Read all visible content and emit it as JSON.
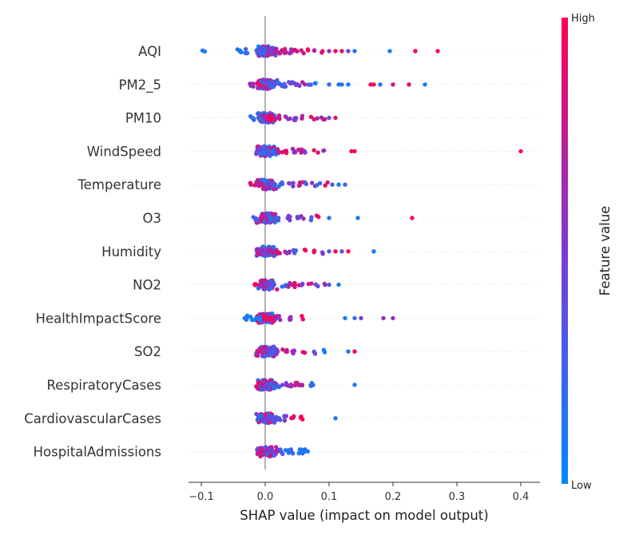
{
  "chart_data": {
    "type": "scatter",
    "xlabel": "SHAP value (impact on model output)",
    "xlim": [
      -0.12,
      0.43
    ],
    "xticks": [
      -0.1,
      0.0,
      0.1,
      0.2,
      0.3,
      0.4
    ],
    "xtick_labels": [
      "−0.1",
      "0.0",
      "0.1",
      "0.2",
      "0.3",
      "0.4"
    ],
    "colorbar": {
      "label": "Feature value",
      "high_label": "High",
      "low_label": "Low",
      "low_color": "#008afb",
      "mid_color": "#7c3bd5",
      "high_color": "#ff0052"
    },
    "features": [
      {
        "name": "AQI",
        "points": [
          [
            -0.095,
            0.1
          ],
          [
            -0.04,
            0.1
          ],
          [
            -0.03,
            0.2
          ],
          [
            -0.01,
            0.3
          ],
          [
            0.005,
            0.5
          ],
          [
            0.01,
            0.6
          ],
          [
            0.015,
            0.5
          ],
          [
            0.02,
            0.7
          ],
          [
            0.03,
            0.8
          ],
          [
            0.04,
            0.6
          ],
          [
            0.05,
            0.9
          ],
          [
            0.06,
            0.8
          ],
          [
            0.07,
            0.95
          ],
          [
            0.08,
            0.7
          ],
          [
            0.09,
            0.9
          ],
          [
            0.1,
            0.6
          ],
          [
            0.11,
            0.95
          ],
          [
            0.12,
            0.9
          ],
          [
            0.13,
            0.4
          ],
          [
            0.14,
            0.2
          ],
          [
            0.195,
            0.1
          ],
          [
            0.235,
            1.0
          ],
          [
            0.27,
            1.0
          ]
        ]
      },
      {
        "name": "PM2_5",
        "points": [
          [
            -0.02,
            0.6
          ],
          [
            -0.01,
            0.9
          ],
          [
            0.005,
            0.4
          ],
          [
            0.01,
            0.3
          ],
          [
            0.02,
            0.2
          ],
          [
            0.03,
            0.3
          ],
          [
            0.04,
            0.4
          ],
          [
            0.05,
            0.5
          ],
          [
            0.06,
            0.7
          ],
          [
            0.07,
            0.3
          ],
          [
            0.08,
            0.1
          ],
          [
            0.1,
            0.2
          ],
          [
            0.115,
            0.1
          ],
          [
            0.12,
            0.2
          ],
          [
            0.13,
            0.1
          ],
          [
            0.165,
            0.9
          ],
          [
            0.17,
            1.0
          ],
          [
            0.18,
            0.1
          ],
          [
            0.2,
            0.8
          ],
          [
            0.225,
            0.95
          ],
          [
            0.25,
            0.1
          ]
        ]
      },
      {
        "name": "PM10",
        "points": [
          [
            -0.02,
            0.2
          ],
          [
            -0.01,
            0.3
          ],
          [
            0.0,
            0.7
          ],
          [
            0.005,
            0.9
          ],
          [
            0.01,
            0.95
          ],
          [
            0.02,
            0.8
          ],
          [
            0.035,
            0.6
          ],
          [
            0.045,
            0.5
          ],
          [
            0.06,
            0.7
          ],
          [
            0.075,
            0.9
          ],
          [
            0.085,
            0.6
          ],
          [
            0.095,
            0.8
          ],
          [
            0.1,
            0.4
          ],
          [
            0.11,
            0.85
          ]
        ]
      },
      {
        "name": "WindSpeed",
        "points": [
          [
            -0.01,
            0.5
          ],
          [
            0.0,
            0.3
          ],
          [
            0.01,
            0.2
          ],
          [
            0.02,
            0.7
          ],
          [
            0.03,
            0.9
          ],
          [
            0.045,
            0.6
          ],
          [
            0.055,
            0.8
          ],
          [
            0.065,
            0.5
          ],
          [
            0.08,
            0.9
          ],
          [
            0.09,
            0.6
          ],
          [
            0.135,
            0.95
          ],
          [
            0.14,
            1.0
          ],
          [
            0.4,
            1.0
          ]
        ]
      },
      {
        "name": "Temperature",
        "points": [
          [
            -0.02,
            0.9
          ],
          [
            -0.01,
            0.7
          ],
          [
            0.005,
            0.5
          ],
          [
            0.015,
            0.3
          ],
          [
            0.025,
            0.2
          ],
          [
            0.04,
            0.5
          ],
          [
            0.055,
            0.8
          ],
          [
            0.065,
            0.3
          ],
          [
            0.075,
            0.6
          ],
          [
            0.085,
            0.2
          ],
          [
            0.095,
            0.9
          ],
          [
            0.105,
            0.3
          ],
          [
            0.115,
            0.1
          ],
          [
            0.125,
            0.2
          ]
        ]
      },
      {
        "name": "O3",
        "points": [
          [
            -0.015,
            0.3
          ],
          [
            -0.005,
            0.8
          ],
          [
            0.01,
            0.2
          ],
          [
            0.02,
            0.3
          ],
          [
            0.035,
            0.5
          ],
          [
            0.05,
            0.4
          ],
          [
            0.06,
            0.6
          ],
          [
            0.07,
            0.3
          ],
          [
            0.08,
            0.9
          ],
          [
            0.1,
            0.1
          ],
          [
            0.145,
            0.1
          ],
          [
            0.23,
            1.0
          ]
        ]
      },
      {
        "name": "Humidity",
        "points": [
          [
            -0.01,
            0.6
          ],
          [
            0.0,
            0.5
          ],
          [
            0.01,
            0.7
          ],
          [
            0.02,
            0.9
          ],
          [
            0.035,
            0.6
          ],
          [
            0.045,
            0.3
          ],
          [
            0.06,
            0.95
          ],
          [
            0.08,
            0.9
          ],
          [
            0.09,
            0.5
          ],
          [
            0.1,
            0.3
          ],
          [
            0.11,
            0.95
          ],
          [
            0.12,
            0.4
          ],
          [
            0.13,
            0.95
          ],
          [
            0.17,
            0.1
          ]
        ]
      },
      {
        "name": "NO2",
        "points": [
          [
            -0.015,
            0.95
          ],
          [
            -0.005,
            0.7
          ],
          [
            0.005,
            0.5
          ],
          [
            0.015,
            0.3
          ],
          [
            0.03,
            0.2
          ],
          [
            0.04,
            0.7
          ],
          [
            0.05,
            0.9
          ],
          [
            0.06,
            0.5
          ],
          [
            0.07,
            0.8
          ],
          [
            0.08,
            0.4
          ],
          [
            0.09,
            0.6
          ],
          [
            0.1,
            0.3
          ],
          [
            0.115,
            0.1
          ]
        ]
      },
      {
        "name": "HealthImpactScore",
        "points": [
          [
            -0.03,
            0.1
          ],
          [
            -0.02,
            0.05
          ],
          [
            -0.01,
            0.1
          ],
          [
            0.0,
            0.95
          ],
          [
            0.005,
            0.9
          ],
          [
            0.01,
            0.9
          ],
          [
            0.02,
            0.6
          ],
          [
            0.04,
            0.6
          ],
          [
            0.06,
            0.95
          ],
          [
            0.125,
            0.1
          ],
          [
            0.14,
            0.2
          ],
          [
            0.15,
            0.5
          ],
          [
            0.185,
            0.6
          ],
          [
            0.2,
            0.6
          ]
        ]
      },
      {
        "name": "SO2",
        "points": [
          [
            -0.01,
            0.8
          ],
          [
            0.0,
            0.6
          ],
          [
            0.01,
            0.3
          ],
          [
            0.02,
            0.5
          ],
          [
            0.03,
            0.8
          ],
          [
            0.045,
            0.6
          ],
          [
            0.06,
            0.9
          ],
          [
            0.075,
            0.4
          ],
          [
            0.09,
            0.1
          ],
          [
            0.13,
            0.1
          ],
          [
            0.14,
            1.0
          ]
        ]
      },
      {
        "name": "RespiratoryCases",
        "points": [
          [
            -0.01,
            0.9
          ],
          [
            0.0,
            0.5
          ],
          [
            0.01,
            0.3
          ],
          [
            0.02,
            0.2
          ],
          [
            0.03,
            0.5
          ],
          [
            0.04,
            0.6
          ],
          [
            0.05,
            0.8
          ],
          [
            0.055,
            0.7
          ],
          [
            0.07,
            0.1
          ],
          [
            0.075,
            0.2
          ],
          [
            0.14,
            0.1
          ]
        ]
      },
      {
        "name": "CardiovascularCases",
        "points": [
          [
            -0.01,
            0.2
          ],
          [
            0.0,
            0.5
          ],
          [
            0.01,
            0.4
          ],
          [
            0.02,
            0.3
          ],
          [
            0.03,
            0.5
          ],
          [
            0.045,
            0.9
          ],
          [
            0.055,
            1.0
          ],
          [
            0.11,
            0.1
          ]
        ]
      },
      {
        "name": "HospitalAdmissions",
        "points": [
          [
            -0.01,
            0.8
          ],
          [
            0.0,
            0.6
          ],
          [
            0.01,
            0.5
          ],
          [
            0.02,
            0.7
          ],
          [
            0.025,
            0.3
          ],
          [
            0.035,
            0.1
          ],
          [
            0.04,
            0.2
          ],
          [
            0.055,
            0.1
          ],
          [
            0.06,
            0.2
          ],
          [
            0.065,
            0.1
          ]
        ]
      }
    ]
  }
}
